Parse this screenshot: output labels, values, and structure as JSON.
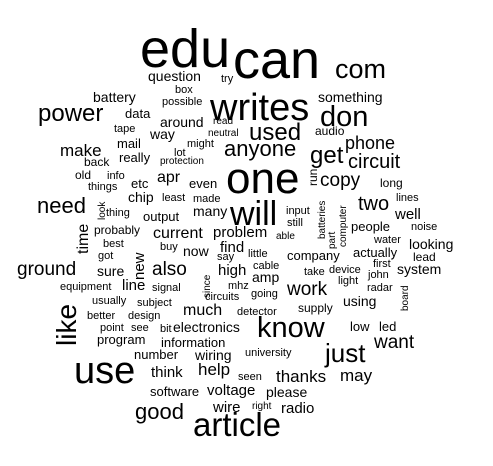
{
  "text_color": "#000000",
  "background_color": "#ffffff",
  "words": [
    {
      "text": "edu",
      "weight": 60,
      "rotated": false
    },
    {
      "text": "can",
      "weight": 58,
      "rotated": false
    },
    {
      "text": "com",
      "weight": 28,
      "rotated": false
    },
    {
      "text": "writes",
      "weight": 40,
      "rotated": false
    },
    {
      "text": "one",
      "weight": 48,
      "rotated": false
    },
    {
      "text": "will",
      "weight": 36,
      "rotated": false
    },
    {
      "text": "don",
      "weight": 30,
      "rotated": false
    },
    {
      "text": "power",
      "weight": 26,
      "rotated": false
    },
    {
      "text": "used",
      "weight": 26,
      "rotated": false
    },
    {
      "text": "anyone",
      "weight": 24,
      "rotated": false
    },
    {
      "text": "get",
      "weight": 24,
      "rotated": false
    },
    {
      "text": "circuit",
      "weight": 20,
      "rotated": false
    },
    {
      "text": "phone",
      "weight": 20,
      "rotated": false
    },
    {
      "text": "copy",
      "weight": 20,
      "rotated": false
    },
    {
      "text": "two",
      "weight": 20,
      "rotated": false
    },
    {
      "text": "need",
      "weight": 24,
      "rotated": false
    },
    {
      "text": "make",
      "weight": 18,
      "rotated": false
    },
    {
      "text": "ground",
      "weight": 20,
      "rotated": false
    },
    {
      "text": "also",
      "weight": 20,
      "rotated": false
    },
    {
      "text": "like",
      "weight": 28,
      "rotated": true
    },
    {
      "text": "use",
      "weight": 40,
      "rotated": false
    },
    {
      "text": "know",
      "weight": 30,
      "rotated": false
    },
    {
      "text": "just",
      "weight": 26,
      "rotated": false
    },
    {
      "text": "work",
      "weight": 20,
      "rotated": false
    },
    {
      "text": "want",
      "weight": 20,
      "rotated": false
    },
    {
      "text": "article",
      "weight": 36,
      "rotated": false
    },
    {
      "text": "good",
      "weight": 22,
      "rotated": false
    },
    {
      "text": "help",
      "weight": 18,
      "rotated": false
    },
    {
      "text": "thanks",
      "weight": 18,
      "rotated": false
    },
    {
      "text": "may",
      "weight": 18,
      "rotated": false
    },
    {
      "text": "current",
      "weight": 16,
      "rotated": false
    },
    {
      "text": "problem",
      "weight": 16,
      "rotated": false
    },
    {
      "text": "question",
      "weight": 14,
      "rotated": false
    },
    {
      "text": "battery",
      "weight": 14,
      "rotated": false
    },
    {
      "text": "something",
      "weight": 14,
      "rotated": false
    },
    {
      "text": "around",
      "weight": 14,
      "rotated": false
    },
    {
      "text": "mail",
      "weight": 14,
      "rotated": false
    },
    {
      "text": "way",
      "weight": 14,
      "rotated": false
    },
    {
      "text": "really",
      "weight": 14,
      "rotated": false
    },
    {
      "text": "apr",
      "weight": 16,
      "rotated": false
    },
    {
      "text": "chip",
      "weight": 14,
      "rotated": false
    },
    {
      "text": "etc",
      "weight": 14,
      "rotated": false
    },
    {
      "text": "even",
      "weight": 14,
      "rotated": false
    },
    {
      "text": "output",
      "weight": 14,
      "rotated": false
    },
    {
      "text": "many",
      "weight": 14,
      "rotated": false
    },
    {
      "text": "find",
      "weight": 16,
      "rotated": false
    },
    {
      "text": "high",
      "weight": 16,
      "rotated": false
    },
    {
      "text": "company",
      "weight": 13,
      "rotated": false
    },
    {
      "text": "system",
      "weight": 14,
      "rotated": false
    },
    {
      "text": "looking",
      "weight": 14,
      "rotated": false
    },
    {
      "text": "well",
      "weight": 14,
      "rotated": false
    },
    {
      "text": "people",
      "weight": 14,
      "rotated": false
    },
    {
      "text": "actually",
      "weight": 13,
      "rotated": false
    },
    {
      "text": "using",
      "weight": 14,
      "rotated": false
    },
    {
      "text": "much",
      "weight": 16,
      "rotated": false
    },
    {
      "text": "electronics",
      "weight": 14,
      "rotated": false
    },
    {
      "text": "information",
      "weight": 14,
      "rotated": false
    },
    {
      "text": "wiring",
      "weight": 14,
      "rotated": false
    },
    {
      "text": "number",
      "weight": 13,
      "rotated": false
    },
    {
      "text": "think",
      "weight": 14,
      "rotated": false
    },
    {
      "text": "software",
      "weight": 13,
      "rotated": false
    },
    {
      "text": "voltage",
      "weight": 14,
      "rotated": false
    },
    {
      "text": "please",
      "weight": 14,
      "rotated": false
    },
    {
      "text": "wire",
      "weight": 14,
      "rotated": false
    },
    {
      "text": "radio",
      "weight": 14,
      "rotated": false
    },
    {
      "text": "line",
      "weight": 14,
      "rotated": false
    },
    {
      "text": "sure",
      "weight": 14,
      "rotated": false
    },
    {
      "text": "program",
      "weight": 13,
      "rotated": false
    },
    {
      "text": "low",
      "weight": 13,
      "rotated": false
    },
    {
      "text": "led",
      "weight": 13,
      "rotated": false
    },
    {
      "text": "amp",
      "weight": 14,
      "rotated": false
    },
    {
      "text": "long",
      "weight": 12,
      "rotated": false
    },
    {
      "text": "time",
      "weight": 16,
      "rotated": true
    },
    {
      "text": "new",
      "weight": 16,
      "rotated": true
    },
    {
      "text": "run",
      "weight": 13,
      "rotated": true
    },
    {
      "text": "data",
      "weight": 13,
      "rotated": false
    },
    {
      "text": "audio",
      "weight": 12,
      "rotated": false
    },
    {
      "text": "possible",
      "weight": 11,
      "rotated": false
    },
    {
      "text": "box",
      "weight": 11,
      "rotated": false
    },
    {
      "text": "try",
      "weight": 11,
      "rotated": false
    },
    {
      "text": "tape",
      "weight": 11,
      "rotated": false
    },
    {
      "text": "read",
      "weight": 11,
      "rotated": false
    },
    {
      "text": "neutral",
      "weight": 11,
      "rotated": false
    },
    {
      "text": "might",
      "weight": 11,
      "rotated": false
    },
    {
      "text": "lot",
      "weight": 11,
      "rotated": false
    },
    {
      "text": "protection",
      "weight": 10,
      "rotated": false
    },
    {
      "text": "back",
      "weight": 12,
      "rotated": false
    },
    {
      "text": "old",
      "weight": 12,
      "rotated": false
    },
    {
      "text": "info",
      "weight": 11,
      "rotated": false
    },
    {
      "text": "things",
      "weight": 11,
      "rotated": false
    },
    {
      "text": "least",
      "weight": 11,
      "rotated": false
    },
    {
      "text": "made",
      "weight": 11,
      "rotated": false
    },
    {
      "text": "thing",
      "weight": 11,
      "rotated": false
    },
    {
      "text": "probably",
      "weight": 12,
      "rotated": false
    },
    {
      "text": "best",
      "weight": 11,
      "rotated": false
    },
    {
      "text": "got",
      "weight": 11,
      "rotated": false
    },
    {
      "text": "buy",
      "weight": 11,
      "rotated": false
    },
    {
      "text": "now",
      "weight": 14,
      "rotated": false
    },
    {
      "text": "say",
      "weight": 11,
      "rotated": false
    },
    {
      "text": "little",
      "weight": 11,
      "rotated": false
    },
    {
      "text": "cable",
      "weight": 11,
      "rotated": false
    },
    {
      "text": "able",
      "weight": 10,
      "rotated": false
    },
    {
      "text": "still",
      "weight": 11,
      "rotated": false
    },
    {
      "text": "input",
      "weight": 11,
      "rotated": false
    },
    {
      "text": "lines",
      "weight": 11,
      "rotated": false
    },
    {
      "text": "noise",
      "weight": 11,
      "rotated": false
    },
    {
      "text": "water",
      "weight": 11,
      "rotated": false
    },
    {
      "text": "lead",
      "weight": 12,
      "rotated": false
    },
    {
      "text": "first",
      "weight": 11,
      "rotated": false
    },
    {
      "text": "light",
      "weight": 11,
      "rotated": false
    },
    {
      "text": "john",
      "weight": 11,
      "rotated": false
    },
    {
      "text": "radar",
      "weight": 11,
      "rotated": false
    },
    {
      "text": "device",
      "weight": 11,
      "rotated": false
    },
    {
      "text": "take",
      "weight": 11,
      "rotated": false
    },
    {
      "text": "supply",
      "weight": 12,
      "rotated": false
    },
    {
      "text": "detector",
      "weight": 11,
      "rotated": false
    },
    {
      "text": "mhz",
      "weight": 11,
      "rotated": false
    },
    {
      "text": "going",
      "weight": 11,
      "rotated": false
    },
    {
      "text": "circuits",
      "weight": 11,
      "rotated": false
    },
    {
      "text": "signal",
      "weight": 11,
      "rotated": false
    },
    {
      "text": "subject",
      "weight": 11,
      "rotated": false
    },
    {
      "text": "usually",
      "weight": 11,
      "rotated": false
    },
    {
      "text": "equipment",
      "weight": 11,
      "rotated": false
    },
    {
      "text": "design",
      "weight": 11,
      "rotated": false
    },
    {
      "text": "better",
      "weight": 11,
      "rotated": false
    },
    {
      "text": "point",
      "weight": 11,
      "rotated": false
    },
    {
      "text": "see",
      "weight": 11,
      "rotated": false
    },
    {
      "text": "bit",
      "weight": 11,
      "rotated": false
    },
    {
      "text": "university",
      "weight": 11,
      "rotated": false
    },
    {
      "text": "seen",
      "weight": 11,
      "rotated": false
    },
    {
      "text": "right",
      "weight": 10,
      "rotated": false
    },
    {
      "text": "batteries",
      "weight": 10,
      "rotated": true
    },
    {
      "text": "part",
      "weight": 10,
      "rotated": true
    },
    {
      "text": "computer",
      "weight": 10,
      "rotated": true
    },
    {
      "text": "board",
      "weight": 10,
      "rotated": true
    },
    {
      "text": "look",
      "weight": 10,
      "rotated": true
    },
    {
      "text": "since",
      "weight": 10,
      "rotated": true
    }
  ]
}
